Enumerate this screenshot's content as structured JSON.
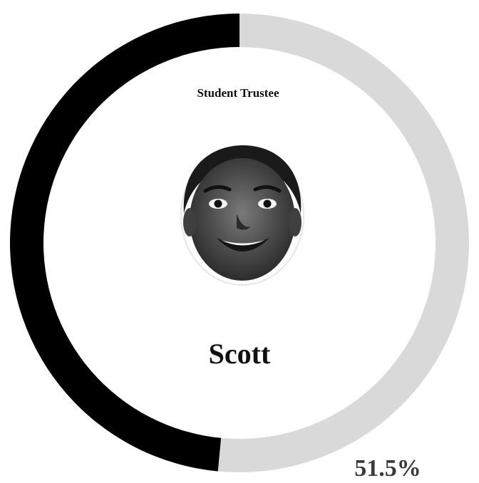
{
  "chart_data": {
    "type": "pie",
    "style": "donut",
    "title": "Student Trustee",
    "candidate": "Scott",
    "slices": [
      {
        "label": "Scott",
        "value": 51.5,
        "color": "#d9d9d9",
        "display": "51.5%"
      },
      {
        "label": "",
        "value": 48.5,
        "color": "#000000",
        "display": ""
      }
    ],
    "start_angle": "top",
    "direction": "clockwise",
    "center_image": "person-face-photo"
  }
}
